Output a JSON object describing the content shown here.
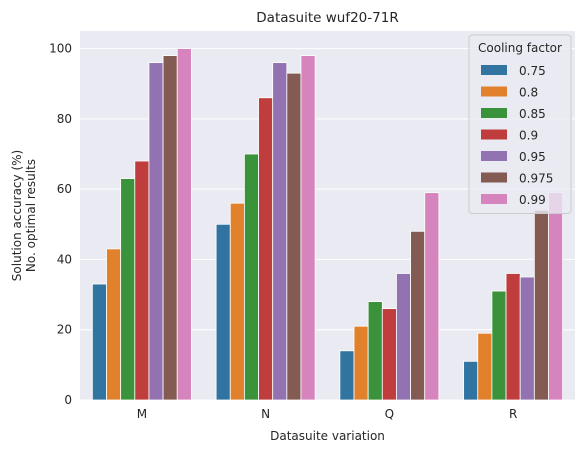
{
  "chart_data": {
    "type": "bar",
    "title": "Datasuite wuf20-71R",
    "xlabel": "Datasuite variation",
    "ylabel_lines": [
      "Solution accuracy (%)",
      "No. optimal results"
    ],
    "categories": [
      "M",
      "N",
      "Q",
      "R"
    ],
    "ylim": [
      0,
      105
    ],
    "yticks": [
      0,
      20,
      40,
      60,
      80,
      100
    ],
    "grid": true,
    "legend": {
      "title": "Cooling factor",
      "placement": "top-right"
    },
    "series": [
      {
        "name": "0.75",
        "color": "#3274a1",
        "values": [
          33,
          50,
          14,
          11
        ]
      },
      {
        "name": "0.8",
        "color": "#e1812c",
        "values": [
          43,
          56,
          21,
          19
        ]
      },
      {
        "name": "0.85",
        "color": "#3a923a",
        "values": [
          63,
          70,
          28,
          31
        ]
      },
      {
        "name": "0.9",
        "color": "#c03d3e",
        "values": [
          68,
          86,
          26,
          36
        ]
      },
      {
        "name": "0.95",
        "color": "#9372b2",
        "values": [
          96,
          96,
          36,
          35
        ]
      },
      {
        "name": "0.975",
        "color": "#845b53",
        "values": [
          98,
          93,
          48,
          54
        ]
      },
      {
        "name": "0.99",
        "color": "#d684bd",
        "values": [
          100,
          98,
          59,
          59
        ]
      }
    ]
  }
}
